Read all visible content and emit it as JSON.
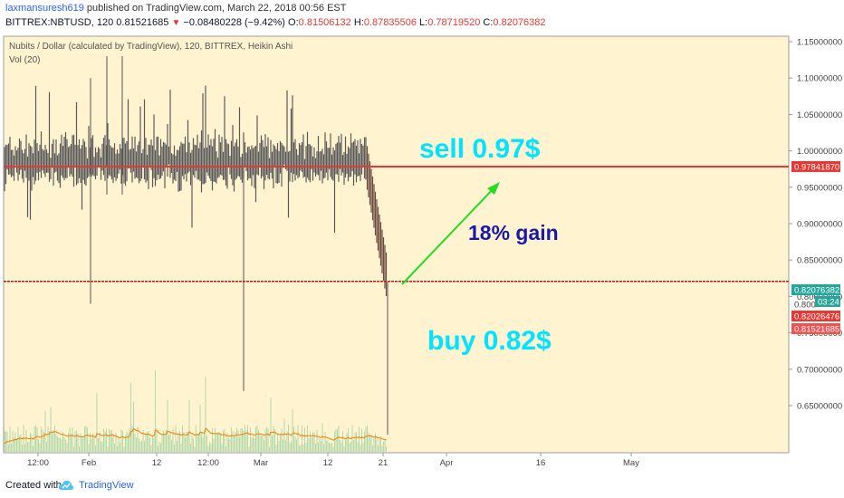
{
  "header": {
    "author": "laxmansuresh619",
    "published": " published on TradingView.com, March 22, 2018 00:56 EST",
    "symbol": "BITTREX:NBTUSD, 120",
    "last": "0.81521685",
    "change": "−0.08480228 (−9.42%)",
    "o_label": "O:",
    "o_value": "0.81506132",
    "h_label": "H:",
    "h_value": "0.87835506",
    "l_label": "L:",
    "l_value": "0.78719520",
    "c_label": "C:",
    "c_value": "0.82076382"
  },
  "chart_title": "Nubits / Dollar (calculated by TradingView), 120, BITTREX, Heikin Ashi",
  "vol_label": "Vol (20)",
  "chart_data": {
    "type": "candlestick",
    "title": "Nubits / Dollar (calculated by TradingView), 120, BITTREX, Heikin Ashi",
    "ylim": [
      0.6,
      1.17
    ],
    "y_ticks": [
      "1.15000000",
      "1.10000000",
      "1.05000000",
      "1.00000000",
      "0.95000000",
      "0.90000000",
      "0.85000000",
      "0.80000000",
      "0.75000000",
      "0.70000000",
      "0.65000000"
    ],
    "x_ticks": [
      "12:00",
      "Feb",
      "12",
      "12:00",
      "Mar",
      "12",
      "21",
      "Apr",
      "16",
      "May"
    ],
    "price_series_description_range": {
      "typical_low": 0.96,
      "typical_high": 1.01
    },
    "drop_end_value": 0.82,
    "horizontal_lines": [
      {
        "value": 0.9784187,
        "label": "0.97841870",
        "color": "#e53935"
      },
      {
        "value": 0.82076382,
        "label": "0.82076382",
        "color": "#b71c1c"
      }
    ],
    "price_labels": [
      {
        "value": "0.82076382",
        "color": "#26a69a"
      },
      {
        "value": "03:24",
        "color": "#26a69a"
      },
      {
        "value": "0.82026476",
        "color": "#e53935"
      },
      {
        "value": "0.81521685",
        "color": "#ef5350"
      }
    ],
    "annotations": [
      {
        "text": "sell 0.97$",
        "color": "#00e5ff"
      },
      {
        "text": "18% gain",
        "color": "#1a1aaa"
      },
      {
        "text": "buy 0.82$",
        "color": "#00e5ff"
      }
    ],
    "colors": {
      "background": "#fff3d0",
      "candles": "#555555",
      "volume": "#a5d6a7",
      "vol_ma": "#f57c00",
      "arrow": "#22dd22"
    }
  },
  "footer": {
    "created": "Created with",
    "brand": "TradingView"
  }
}
